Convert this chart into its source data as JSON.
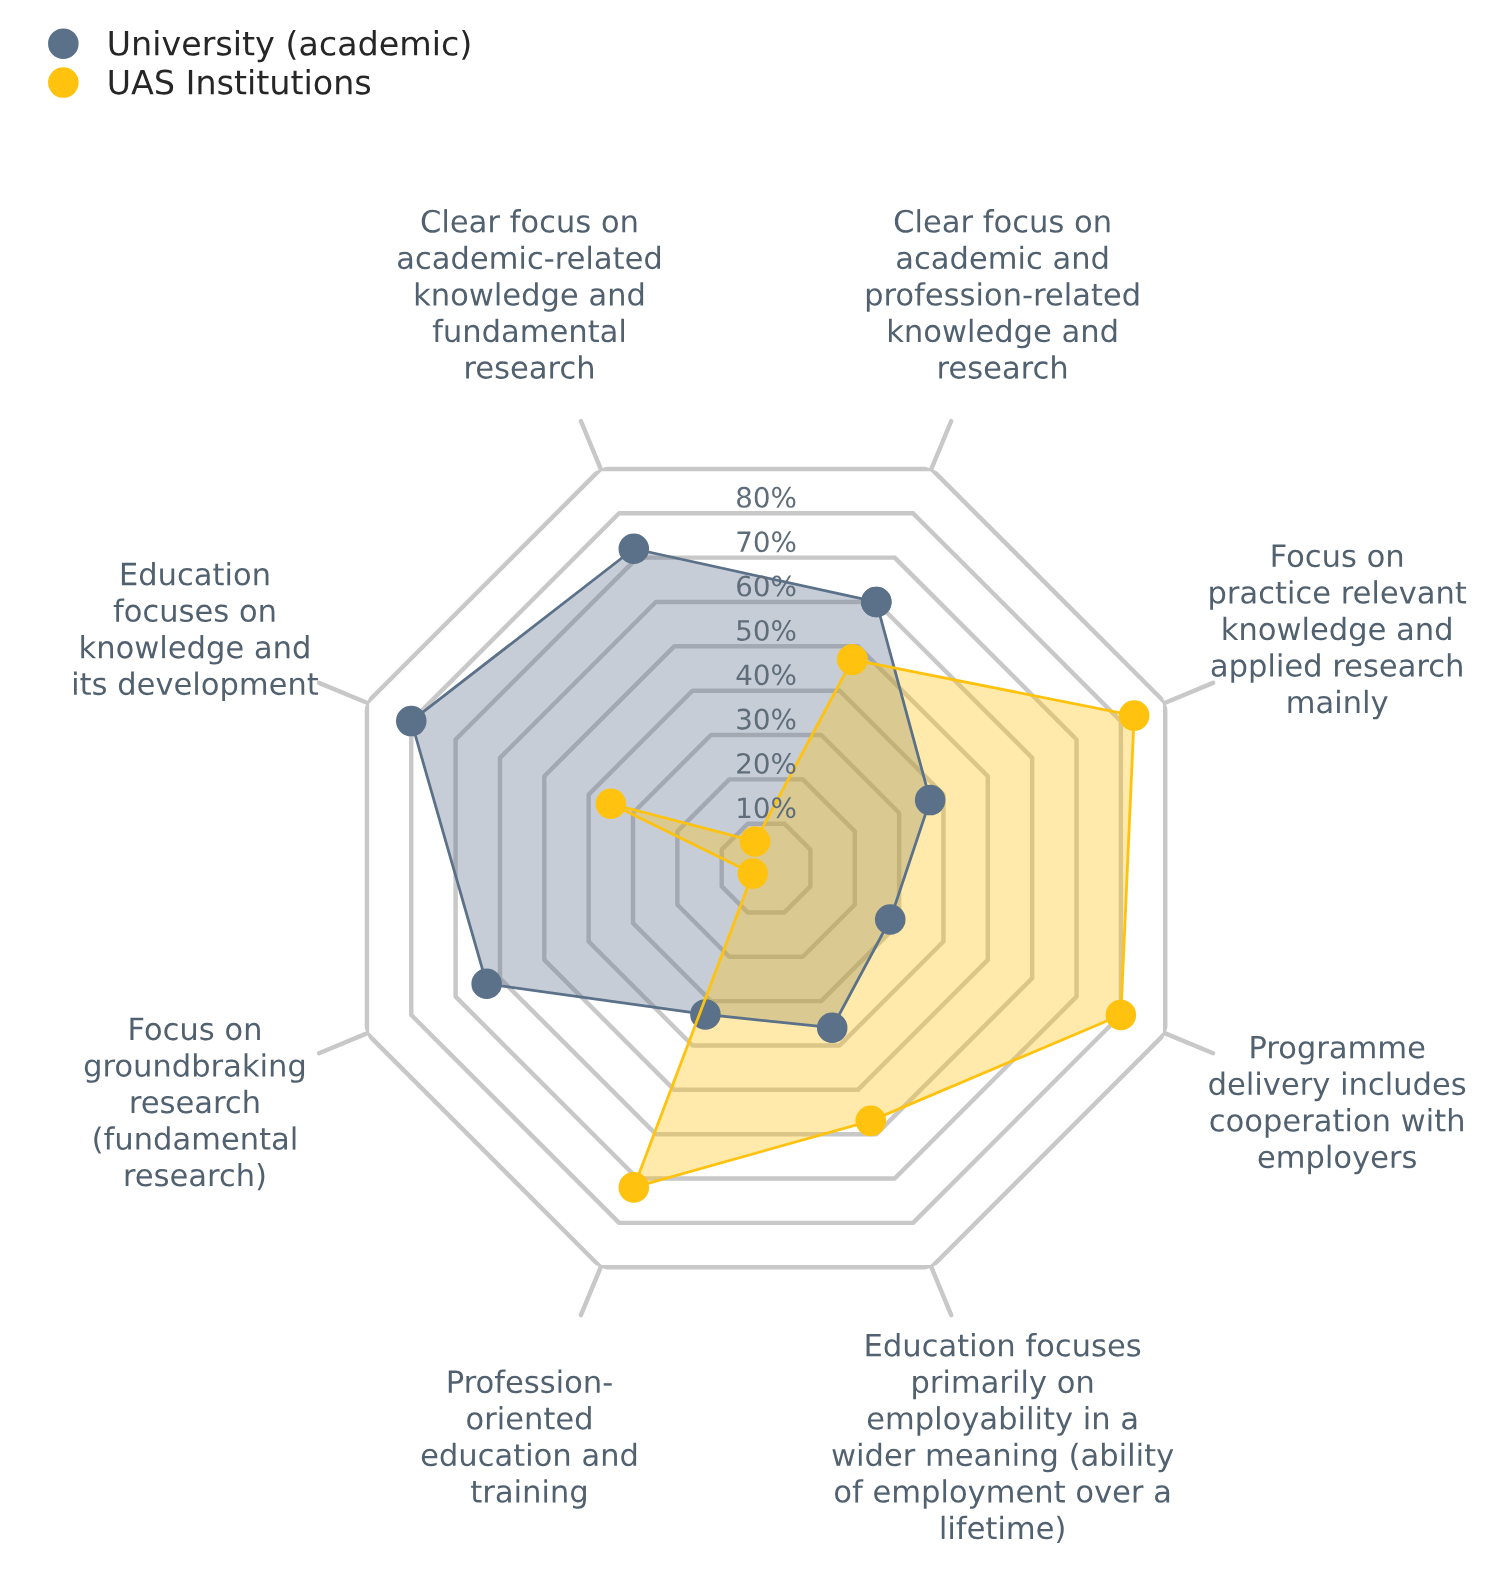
{
  "chart_data": {
    "type": "radar",
    "categories": [
      "Clear focus on\nacademic and\nprofession-related\nknowledge and\nresearch",
      "Focus on\npractice relevant\nknowledge and\napplied research\nmainly",
      "Programme\ndelivery includes\ncooperation with\nemployers",
      "Education focuses\nprimarily on\nemployability in a\nwider meaning (ability\nof employment over a\nlifetime)",
      "Profession-\noriented\neducation and\ntraining",
      "Focus on\ngroundbraking\nresearch\n(fundamental\nresearch)",
      "Education\nfocuses on\nknowledge and\nits development",
      "Clear focus on\nacademic-related\nknowledge and\nfundamental\nresearch"
    ],
    "series": [
      {
        "name": "University (academic)",
        "color": "#5b7189",
        "values": [
          60,
          37,
          28,
          36,
          33,
          63,
          80,
          72
        ]
      },
      {
        "name": "UAS Institutions",
        "color": "#ffc20e",
        "values": [
          47,
          83,
          80,
          57,
          72,
          3,
          35,
          6
        ]
      }
    ],
    "ylim": [
      0,
      90
    ],
    "yticks": [
      {
        "value": 10,
        "label": "10%"
      },
      {
        "value": 20,
        "label": "20%"
      },
      {
        "value": 30,
        "label": "30%"
      },
      {
        "value": 40,
        "label": "40%"
      },
      {
        "value": 50,
        "label": "50%"
      },
      {
        "value": 60,
        "label": "60%"
      },
      {
        "value": 70,
        "label": "70%"
      },
      {
        "value": 80,
        "label": "80%"
      }
    ],
    "grid": true,
    "marker": "circle",
    "legend": "top left"
  }
}
